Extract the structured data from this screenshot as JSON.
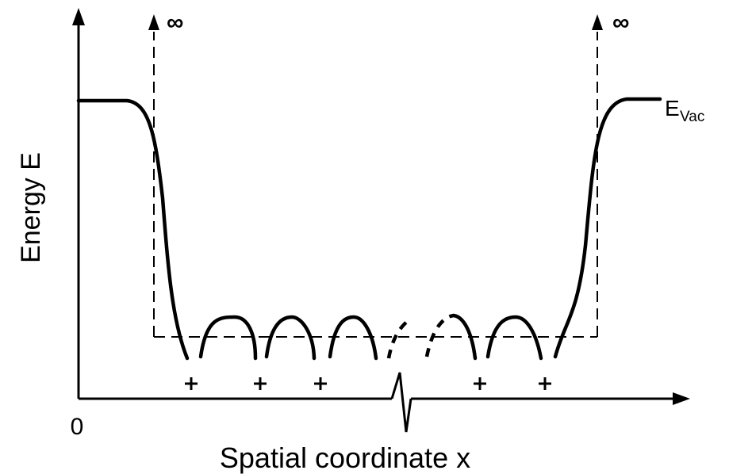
{
  "diagram": {
    "y_axis_label": "Energy E",
    "x_axis_label": "Spatial coordinate x",
    "origin_label": "0",
    "left_barrier_label": "∞",
    "right_barrier_label": "∞",
    "vacuum_level_label": "E",
    "vacuum_level_subscript": "Vac",
    "ion_charge_label": "+"
  }
}
